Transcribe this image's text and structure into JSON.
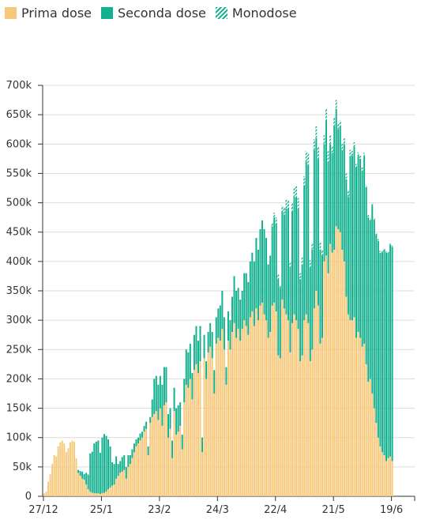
{
  "legend": {
    "first": {
      "label": "Prima dose",
      "color": "#f8c87a"
    },
    "second": {
      "label": "Seconda dose",
      "color": "#12b08f"
    },
    "mono": {
      "label": "Monodose",
      "color": "#12b08f"
    }
  },
  "chart_data": {
    "type": "bar",
    "stacked": true,
    "grid": true,
    "ylim": [
      0,
      700000
    ],
    "y_ticks": [
      {
        "value": 0,
        "label": "0"
      },
      {
        "value": 50000,
        "label": "50k"
      },
      {
        "value": 100000,
        "label": "100k"
      },
      {
        "value": 150000,
        "label": "150k"
      },
      {
        "value": 200000,
        "label": "200k"
      },
      {
        "value": 250000,
        "label": "250k"
      },
      {
        "value": 300000,
        "label": "300k"
      },
      {
        "value": 350000,
        "label": "350k"
      },
      {
        "value": 400000,
        "label": "400k"
      },
      {
        "value": 450000,
        "label": "450k"
      },
      {
        "value": 500000,
        "label": "500k"
      },
      {
        "value": 550000,
        "label": "550k"
      },
      {
        "value": 600000,
        "label": "600k"
      },
      {
        "value": 650000,
        "label": "650k"
      },
      {
        "value": 700000,
        "label": "700k"
      }
    ],
    "x_ticks": [
      "27/12",
      "25/1",
      "23/2",
      "24/3",
      "22/4",
      "21/5",
      "19/6"
    ],
    "date_start": "2020-12-27",
    "tick_every_days": 29,
    "series": [
      {
        "name": "Prima dose",
        "values": [
          5000,
          8000,
          25000,
          38000,
          55000,
          70000,
          68000,
          85000,
          92000,
          95000,
          90000,
          75000,
          82000,
          92000,
          95000,
          93000,
          65000,
          40000,
          35000,
          30000,
          28000,
          20000,
          12000,
          8000,
          6000,
          5000,
          5000,
          5000,
          4000,
          5000,
          6000,
          8000,
          12000,
          15000,
          18000,
          20000,
          30000,
          35000,
          40000,
          42000,
          45000,
          30000,
          50000,
          55000,
          65000,
          75000,
          85000,
          90000,
          95000,
          100000,
          110000,
          115000,
          70000,
          125000,
          135000,
          140000,
          145000,
          130000,
          150000,
          120000,
          155000,
          160000,
          100000,
          115000,
          65000,
          145000,
          105000,
          110000,
          120000,
          80000,
          160000,
          190000,
          185000,
          200000,
          165000,
          215000,
          225000,
          210000,
          230000,
          75000,
          235000,
          200000,
          245000,
          255000,
          235000,
          175000,
          260000,
          270000,
          265000,
          285000,
          250000,
          190000,
          265000,
          250000,
          280000,
          295000,
          270000,
          285000,
          265000,
          285000,
          300000,
          290000,
          275000,
          305000,
          315000,
          290000,
          320000,
          300000,
          325000,
          330000,
          310000,
          300000,
          270000,
          280000,
          325000,
          330000,
          315000,
          240000,
          235000,
          335000,
          320000,
          310000,
          300000,
          245000,
          295000,
          310000,
          300000,
          285000,
          230000,
          240000,
          300000,
          310000,
          295000,
          230000,
          250000,
          320000,
          350000,
          325000,
          260000,
          270000,
          400000,
          410000,
          380000,
          430000,
          415000,
          420000,
          460000,
          455000,
          450000,
          420000,
          400000,
          340000,
          310000,
          300000,
          300000,
          305000,
          270000,
          280000,
          270000,
          255000,
          260000,
          225000,
          195000,
          200000,
          175000,
          150000,
          125000,
          100000,
          85000,
          75000,
          70000,
          60000,
          65000,
          68000,
          60000
        ],
        "color": "#f8c87a"
      },
      {
        "name": "Seconda dose",
        "values": [
          0,
          0,
          0,
          0,
          0,
          0,
          0,
          0,
          0,
          0,
          0,
          0,
          0,
          0,
          0,
          0,
          0,
          5000,
          8000,
          12000,
          10000,
          20000,
          25000,
          65000,
          70000,
          85000,
          88000,
          90000,
          70000,
          95000,
          100000,
          95000,
          85000,
          70000,
          40000,
          35000,
          38000,
          20000,
          20000,
          25000,
          25000,
          20000,
          20000,
          15000,
          15000,
          15000,
          12000,
          10000,
          12000,
          10000,
          10000,
          12000,
          15000,
          10000,
          30000,
          60000,
          60000,
          60000,
          55000,
          70000,
          65000,
          60000,
          40000,
          35000,
          30000,
          40000,
          45000,
          45000,
          40000,
          25000,
          40000,
          60000,
          60000,
          60000,
          45000,
          60000,
          65000,
          55000,
          60000,
          25000,
          40000,
          30000,
          35000,
          40000,
          45000,
          40000,
          45000,
          50000,
          60000,
          65000,
          55000,
          30000,
          50000,
          50000,
          60000,
          80000,
          80000,
          70000,
          70000,
          65000,
          80000,
          90000,
          90000,
          95000,
          100000,
          110000,
          120000,
          120000,
          130000,
          140000,
          145000,
          140000,
          125000,
          130000,
          135000,
          145000,
          150000,
          130000,
          120000,
          150000,
          160000,
          180000,
          190000,
          145000,
          190000,
          200000,
          210000,
          205000,
          140000,
          155000,
          230000,
          260000,
          270000,
          160000,
          170000,
          270000,
          260000,
          250000,
          160000,
          140000,
          200000,
          230000,
          190000,
          170000,
          170000,
          210000,
          200000,
          170000,
          180000,
          170000,
          200000,
          200000,
          200000,
          280000,
          280000,
          290000,
          290000,
          300000,
          305000,
          300000,
          320000,
          300000,
          280000,
          270000,
          320000,
          320000,
          320000,
          335000,
          330000,
          340000,
          350000,
          355000,
          350000,
          360000,
          365000,
          360000,
          360000,
          350000,
          370000
        ],
        "color": "#12b08f"
      },
      {
        "name": "Monodose",
        "values": [
          0,
          0,
          0,
          0,
          0,
          0,
          0,
          0,
          0,
          0,
          0,
          0,
          0,
          0,
          0,
          0,
          0,
          0,
          0,
          0,
          0,
          0,
          0,
          0,
          0,
          0,
          0,
          0,
          0,
          0,
          0,
          0,
          0,
          0,
          0,
          0,
          0,
          0,
          0,
          0,
          0,
          0,
          0,
          0,
          0,
          0,
          0,
          0,
          0,
          0,
          0,
          0,
          0,
          0,
          0,
          0,
          0,
          0,
          0,
          0,
          0,
          0,
          0,
          0,
          0,
          0,
          0,
          0,
          0,
          0,
          0,
          0,
          0,
          0,
          0,
          0,
          0,
          0,
          0,
          0,
          0,
          0,
          0,
          0,
          0,
          0,
          0,
          0,
          0,
          0,
          0,
          0,
          0,
          0,
          0,
          0,
          0,
          0,
          0,
          0,
          0,
          0,
          0,
          0,
          0,
          0,
          0,
          0,
          0,
          0,
          0,
          0,
          0,
          0,
          5000,
          8000,
          10000,
          8000,
          5000,
          10000,
          12000,
          15000,
          15000,
          10000,
          15000,
          15000,
          18000,
          18000,
          10000,
          12000,
          15000,
          18000,
          20000,
          12000,
          12000,
          18000,
          20000,
          20000,
          12000,
          10000,
          15000,
          20000,
          18000,
          15000,
          12000,
          15000,
          15000,
          10000,
          10000,
          10000,
          10000,
          10000,
          10000,
          10000,
          8000,
          8000,
          6000,
          6000,
          5000,
          5000,
          5000,
          5000,
          4000,
          4000,
          4000,
          4000,
          3000,
          3000,
          3000,
          3000,
          3000,
          2000,
          2000,
          2000,
          2000,
          2000,
          2000,
          2000,
          2000,
          2000
        ],
        "color": "#12b08f"
      }
    ]
  }
}
